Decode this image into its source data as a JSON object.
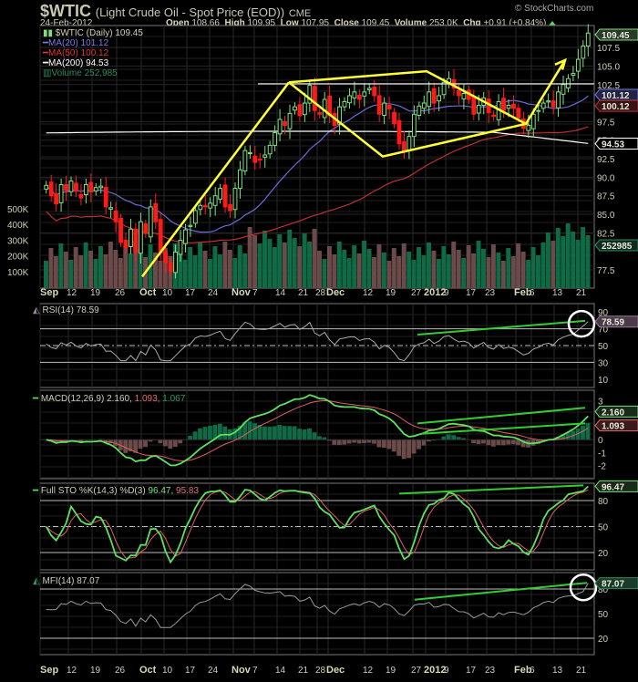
{
  "header": {
    "symbol": "$WTIC",
    "description": "(Light Crude Oil - Spot Price (EOD))",
    "exchange": "CME",
    "date": "24-Feb-2012",
    "open_label": "Open",
    "open": "108.66",
    "high_label": "High",
    "high": "109.95",
    "low_label": "Low",
    "low": "107.95",
    "close_label": "Close",
    "close": "109.45",
    "volume_label": "Volume",
    "volume": "253.0K",
    "chg_label": "Chg",
    "chg": "+0.91 (+0.84%)",
    "credit": "© StockCharts.com"
  },
  "legend": {
    "main": "$WTIC (Daily) 109.45",
    "ma20": "MA(20) 101.12",
    "ma50": "MA(50) 100.12",
    "ma200": "MA(200) 94.53",
    "volume": "Volume 252,985",
    "rsi": "RSI(14) 78.59",
    "macd_name": "MACD(12,26,9)",
    "macd_v1": "2.160,",
    "macd_v2": "1.093,",
    "macd_v3": "1.067",
    "sto_name": "Full STO %K(14,3) %D(3)",
    "sto_k": "96.47,",
    "sto_d": "95.83",
    "mfi": "MFI(14) 87.07"
  },
  "tags": {
    "price": "109.45",
    "ma20": "101.12",
    "ma50": "100.12",
    "ma200": "94.53",
    "volume": "252985",
    "rsi": "78.59",
    "macd": "2.160",
    "signal": "1.093",
    "sto": "96.47",
    "mfi": "87.07"
  },
  "colors": {
    "up": "#7fe07f",
    "down": "#ff1a1a",
    "ma20": "#6a6ad8",
    "ma50": "#c03030",
    "ma200": "#ffffff",
    "vol_up": "#0e6b45",
    "vol_down": "#6b4a4a",
    "trend": "#ffff33",
    "divergence": "#33cc33"
  },
  "chart_data": [
    {
      "type": "candlestick",
      "title": "$WTIC (Light Crude Oil - Spot Price (EOD)) CME — Daily",
      "ylim": [
        76,
        110.5
      ],
      "y_ticks": [
        77.5,
        82.5,
        85.0,
        87.5,
        90.0,
        92.5,
        95.0,
        97.5,
        102.5,
        105.0,
        107.5
      ],
      "volume_ticks": [
        "100K",
        "200K",
        "300K",
        "400K",
        "500K"
      ],
      "x_tick_labels": [
        "Sep",
        "12",
        "19",
        "26",
        "Oct",
        "10",
        "17",
        "24",
        "Nov",
        "7",
        "14",
        "21",
        "28",
        "Dec",
        "12",
        "19",
        "27",
        "2012",
        "9",
        "17",
        "23",
        "Feb",
        "6",
        "13",
        "21"
      ],
      "last": {
        "date": "24-Feb-2012",
        "open": 108.66,
        "high": 109.95,
        "low": 107.95,
        "close": 109.45,
        "volume": 252985
      },
      "series": [
        {
          "name": "MA(20)",
          "last": 101.12
        },
        {
          "name": "MA(50)",
          "last": 100.12
        },
        {
          "name": "MA(200)",
          "last": 94.53
        }
      ],
      "approx_closes": [
        88.9,
        87.5,
        86.4,
        89.0,
        88.2,
        89.5,
        88.1,
        87.2,
        89.0,
        88.0,
        88.6,
        88.8,
        86.0,
        85.9,
        84.0,
        81.2,
        80.5,
        83.0,
        79.9,
        84.0,
        82.4,
        86.0,
        84.0,
        79.8,
        78.5,
        77.3,
        79.9,
        81.5,
        82.9,
        83.5,
        85.5,
        86.2,
        86.0,
        86.5,
        87.5,
        88.5,
        86.0,
        85.5,
        88.5,
        91.0,
        93.6,
        93.3,
        92.0,
        92.4,
        93.0,
        94.3,
        96.0,
        97.8,
        97.0,
        98.6,
        99.5,
        98.3,
        100.0,
        102.4,
        99.0,
        98.5,
        100.5,
        98.3,
        97.0,
        99.5,
        100.2,
        101.0,
        101.5,
        100.5,
        101.5,
        102.0,
        101.0,
        98.5,
        100.0,
        99.2,
        97.2,
        94.5,
        93.5,
        95.5,
        98.5,
        99.6,
        100.0,
        101.5,
        100.0,
        101.0,
        102.8,
        103.3,
        102.0,
        101.0,
        101.3,
        100.5,
        98.5,
        99.7,
        100.7,
        98.7,
        98.2,
        100.2,
        99.0,
        99.7,
        99.3,
        98.0,
        96.6,
        97.0,
        98.5,
        99.0,
        100.0,
        100.3,
        99.5,
        101.5,
        102.5,
        103.3,
        104.0,
        105.9,
        107.7,
        109.45
      ],
      "annotations": [
        "Yellow uptrend from Oct low (~76.5) to mid-Nov high (~102.7)",
        "Yellow channel/diamond Nov–Feb: highs ~103, ~104.2; lows ~92.8 (Dec 19) and ~97 (Feb 3)",
        "Yellow arrow breakout upward in Feb",
        "Horizontal resistance line ~102.5"
      ]
    },
    {
      "type": "line",
      "title": "RSI(14) 78.59",
      "ylim": [
        0,
        100
      ],
      "y_ticks": [
        10,
        30,
        50,
        70,
        90
      ],
      "levels": [
        30,
        50,
        70
      ],
      "last": 78.59,
      "annotations": [
        "Green rising trendline from ~63 (early Jan) to ~79 (Feb 24)",
        "White circle on latest reading"
      ]
    },
    {
      "type": "line+bar",
      "title": "MACD(12,26,9)",
      "y_ticks": [
        -2,
        -1,
        0,
        1,
        2,
        3
      ],
      "series": [
        {
          "name": "MACD",
          "last": 2.16
        },
        {
          "name": "Signal",
          "last": 1.093
        },
        {
          "name": "Histogram",
          "last": 1.067
        }
      ],
      "annotations": [
        "Two green rising trendlines over MACD peaks from early Jan"
      ]
    },
    {
      "type": "line",
      "title": "Full STO %K(14,3) %D(3)",
      "ylim": [
        0,
        100
      ],
      "y_ticks": [
        20,
        50,
        80
      ],
      "series": [
        {
          "name": "%K",
          "last": 96.47
        },
        {
          "name": "%D",
          "last": 95.83
        }
      ],
      "annotations": [
        "Green rising trendline from ~88 (early Jan) to ~97"
      ]
    },
    {
      "type": "line",
      "title": "MFI(14) 87.07",
      "ylim": [
        0,
        100
      ],
      "y_ticks": [
        20,
        50,
        80
      ],
      "last": 87.07,
      "annotations": [
        "Green rising trendline from ~67 (early Jan) to ~87",
        "White circle on latest reading"
      ]
    }
  ]
}
